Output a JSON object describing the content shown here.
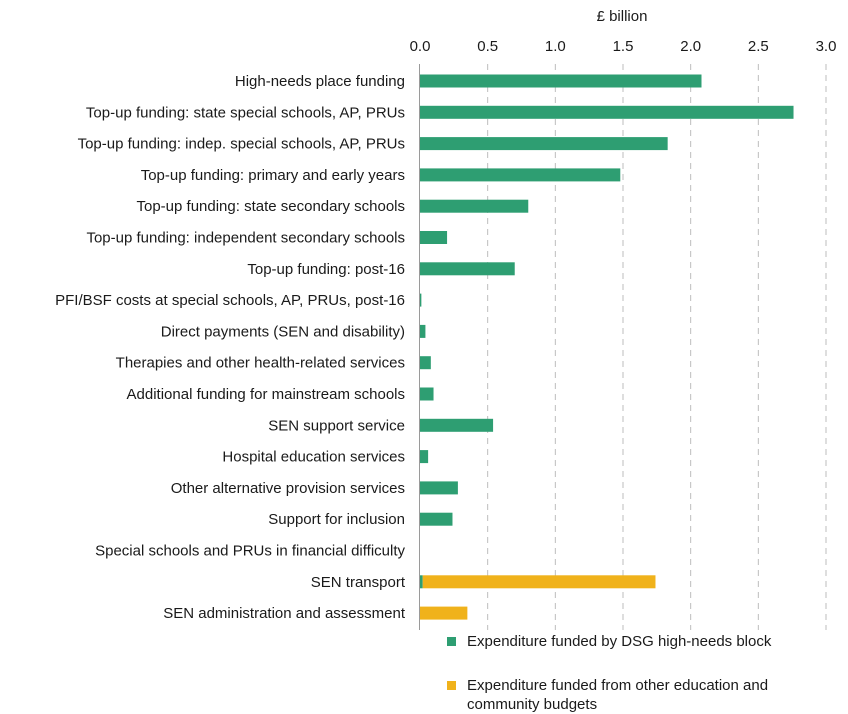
{
  "chart_data": {
    "type": "bar",
    "orientation": "horizontal",
    "stacked": true,
    "xlabel": "£ billion",
    "xlim": [
      0,
      3.0
    ],
    "xticks": [
      "0.0",
      "0.5",
      "1.0",
      "1.5",
      "2.0",
      "2.5",
      "3.0"
    ],
    "grid": "vertical dashed",
    "legend_position": "bottom",
    "categories": [
      "High-needs place funding",
      "Top-up funding: state special schools, AP, PRUs",
      "Top-up funding: indep. special schools, AP, PRUs",
      "Top-up funding: primary and early years",
      "Top-up funding: state secondary schools",
      "Top-up funding: independent secondary schools",
      "Top-up funding: post-16",
      "PFI/BSF costs at special schools, AP, PRUs, post-16",
      "Direct payments (SEN and disability)",
      "Therapies and other health-related services",
      "Additional funding for mainstream schools",
      "SEN support service",
      "Hospital education services",
      "Other alternative provision services",
      "Support for inclusion",
      "Special schools and PRUs in financial difficulty",
      "SEN transport",
      "SEN administration and assessment"
    ],
    "series": [
      {
        "name": "Expenditure funded by DSG high-needs block",
        "color": "#2e9e72",
        "values": [
          2.08,
          2.76,
          1.83,
          1.48,
          0.8,
          0.2,
          0.7,
          0.01,
          0.04,
          0.08,
          0.1,
          0.54,
          0.06,
          0.28,
          0.24,
          0.0,
          0.02,
          0.0
        ]
      },
      {
        "name": "Expenditure funded from other education and community budgets",
        "color": "#f0b21b",
        "values": [
          0,
          0,
          0,
          0,
          0,
          0,
          0,
          0,
          0,
          0,
          0,
          0,
          0,
          0,
          0,
          0,
          1.72,
          0.35
        ]
      }
    ]
  },
  "legend": {
    "items": [
      {
        "label": "Expenditure funded by DSG high-needs block",
        "color": "#2e9e72"
      },
      {
        "label": "Expenditure funded from other education and community budgets",
        "color": "#f0b21b"
      }
    ]
  }
}
